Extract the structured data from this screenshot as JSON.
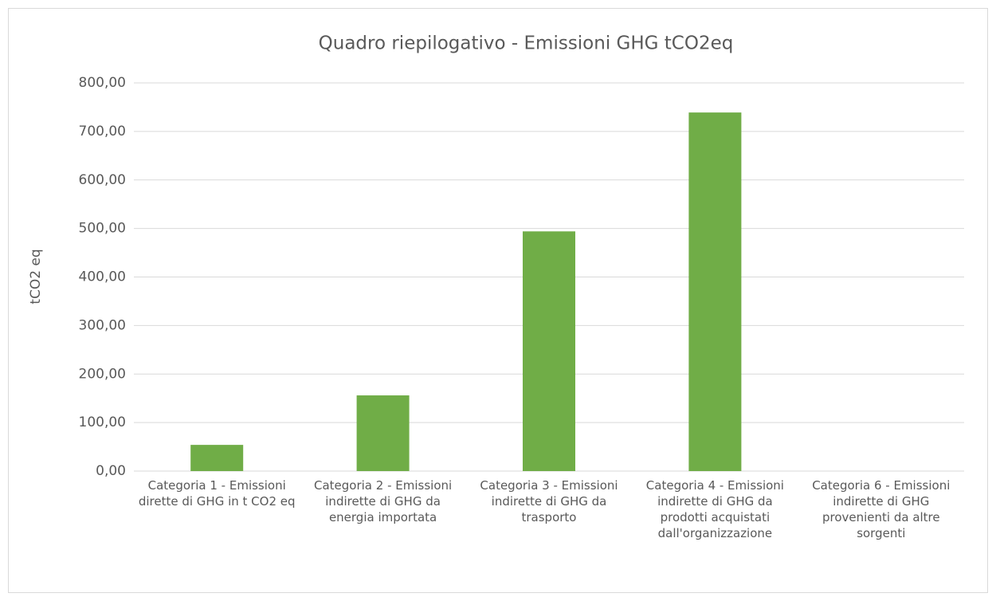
{
  "chart_data": {
    "type": "bar",
    "title": "Quadro riepilogativo - Emissioni GHG tCO2eq",
    "y_label": "tCO2 eq",
    "categories": [
      "Categoria 1 - Emissioni dirette di GHG in t CO2 eq",
      "Categoria 2 - Emissioni indirette di GHG da energia importata",
      "Categoria 3 - Emissioni indirette di GHG da trasporto",
      "Categoria 4 - Emissioni indirette di GHG da prodotti acquistati dall'organizzazione",
      "Categoria 6 - Emissioni indirette di GHG provenienti da altre sorgenti"
    ],
    "values": [
      54,
      156,
      494,
      739,
      0
    ],
    "color": "#70ad47",
    "ylim": [
      0,
      800
    ],
    "yticks": [
      {
        "value": 0,
        "label": "0,00"
      },
      {
        "value": 100,
        "label": "100,00"
      },
      {
        "value": 200,
        "label": "200,00"
      },
      {
        "value": 300,
        "label": "300,00"
      },
      {
        "value": 400,
        "label": "400,00"
      },
      {
        "value": 500,
        "label": "500,00"
      },
      {
        "value": 600,
        "label": "600,00"
      },
      {
        "value": 700,
        "label": "700,00"
      },
      {
        "value": 800,
        "label": "800,00"
      }
    ],
    "grid": true
  }
}
